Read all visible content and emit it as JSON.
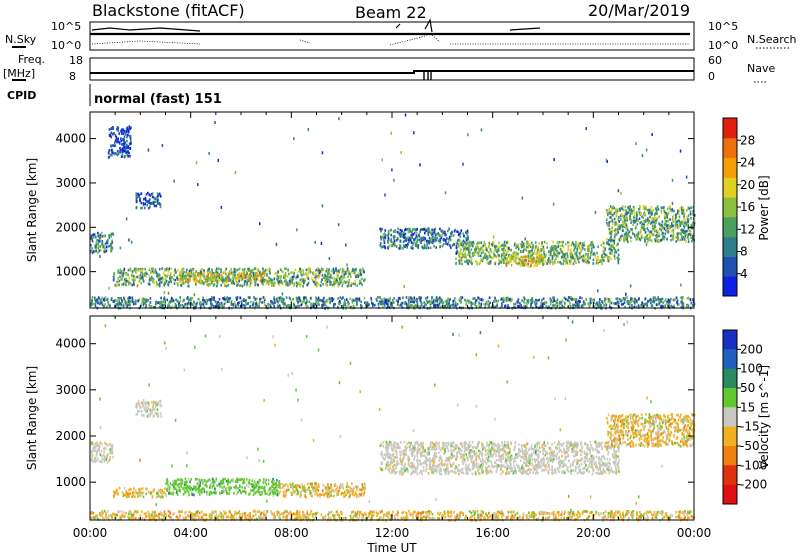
{
  "header": {
    "station": "Blackstone (fitACF)",
    "beam": "Beam 22",
    "date": "20/Mar/2019"
  },
  "status_panels": {
    "nsky_label": "N.Sky",
    "nsearch_label": "N.Search",
    "freq_label": "Freq.",
    "freq_unit": "[MHz]",
    "nave_label": "Nave",
    "cpid_label": "CPID",
    "cpid_text": "normal (fast) 151",
    "noise_ticks": [
      "10^5",
      "10^0"
    ],
    "freq_ticks": [
      "18",
      "8"
    ],
    "nave_ticks": [
      "60",
      "0"
    ]
  },
  "chart_data": [
    {
      "type": "heatmap",
      "name": "power",
      "ylabel": "Slant Range [km]",
      "xlabel": "",
      "x_ticks": [
        "00:00",
        "04:00",
        "08:00",
        "12:00",
        "16:00",
        "20:00",
        "00:00"
      ],
      "y_ticks": [
        1000,
        2000,
        3000,
        4000
      ],
      "xlim_hours": [
        0,
        24
      ],
      "ylim_km": [
        180,
        4600
      ],
      "colorbar": {
        "label": "Power [dB]",
        "ticks": [
          4,
          8,
          12,
          16,
          20,
          24,
          28
        ],
        "range": [
          0,
          32
        ],
        "colors": [
          "#1020e0",
          "#2050b0",
          "#2e7e8a",
          "#4aa060",
          "#8cc040",
          "#e0d020",
          "#f5a000",
          "#f07010",
          "#e02010"
        ]
      },
      "regions": [
        {
          "t0": 0.0,
          "t1": 0.9,
          "r0": 1450,
          "r1": 1900,
          "level": 0.3
        },
        {
          "t0": 0.7,
          "t1": 1.6,
          "r0": 3600,
          "r1": 4300,
          "level": 0.15
        },
        {
          "t0": 1.8,
          "t1": 2.8,
          "r0": 2450,
          "r1": 2800,
          "level": 0.2
        },
        {
          "t0": 0.9,
          "t1": 10.9,
          "r0": 700,
          "r1": 1100,
          "level": 0.4
        },
        {
          "t0": 3.5,
          "t1": 7.0,
          "r0": 800,
          "r1": 1000,
          "level": 0.6
        },
        {
          "t0": 11.5,
          "t1": 15.0,
          "r0": 1550,
          "r1": 2000,
          "level": 0.25
        },
        {
          "t0": 14.5,
          "t1": 21.0,
          "r0": 1200,
          "r1": 1700,
          "level": 0.45
        },
        {
          "t0": 16.5,
          "t1": 18.0,
          "r0": 1150,
          "r1": 1400,
          "level": 0.6
        },
        {
          "t0": 20.5,
          "t1": 24.0,
          "r0": 1700,
          "r1": 2500,
          "level": 0.4
        },
        {
          "t0": 0.0,
          "t1": 24.0,
          "r0": 200,
          "r1": 450,
          "level": 0.3
        }
      ]
    },
    {
      "type": "heatmap",
      "name": "velocity",
      "ylabel": "Slant Range [km]",
      "xlabel": "Time UT",
      "x_ticks": [
        "00:00",
        "04:00",
        "08:00",
        "12:00",
        "16:00",
        "20:00",
        "00:00"
      ],
      "y_ticks": [
        1000,
        2000,
        3000,
        4000
      ],
      "xlim_hours": [
        0,
        24
      ],
      "ylim_km": [
        180,
        4600
      ],
      "colorbar": {
        "label": "Velocity [m s^-1]",
        "ticks": [
          200,
          100,
          50,
          15,
          -15,
          -50,
          -100,
          -200
        ],
        "colors": [
          "#1830c0",
          "#2060c0",
          "#2a8a60",
          "#60c830",
          "#c8c8c0",
          "#f0b020",
          "#f08010",
          "#e03010",
          "#e01010"
        ]
      },
      "regions": [
        {
          "t0": 0.0,
          "t1": 0.9,
          "r0": 1450,
          "r1": 1900,
          "level": "gray"
        },
        {
          "t0": 1.8,
          "t1": 2.8,
          "r0": 2450,
          "r1": 2800,
          "level": "gray"
        },
        {
          "t0": 0.9,
          "t1": 3.0,
          "r0": 700,
          "r1": 900,
          "level": "orange"
        },
        {
          "t0": 3.0,
          "t1": 7.5,
          "r0": 750,
          "r1": 1100,
          "level": "green"
        },
        {
          "t0": 7.5,
          "t1": 10.9,
          "r0": 700,
          "r1": 1000,
          "level": "orange"
        },
        {
          "t0": 11.5,
          "t1": 21.0,
          "r0": 1200,
          "r1": 1900,
          "level": "gray"
        },
        {
          "t0": 20.5,
          "t1": 24.0,
          "r0": 1800,
          "r1": 2500,
          "level": "orange"
        },
        {
          "t0": 0.0,
          "t1": 24.0,
          "r0": 200,
          "r1": 400,
          "level": "orange"
        }
      ]
    }
  ]
}
